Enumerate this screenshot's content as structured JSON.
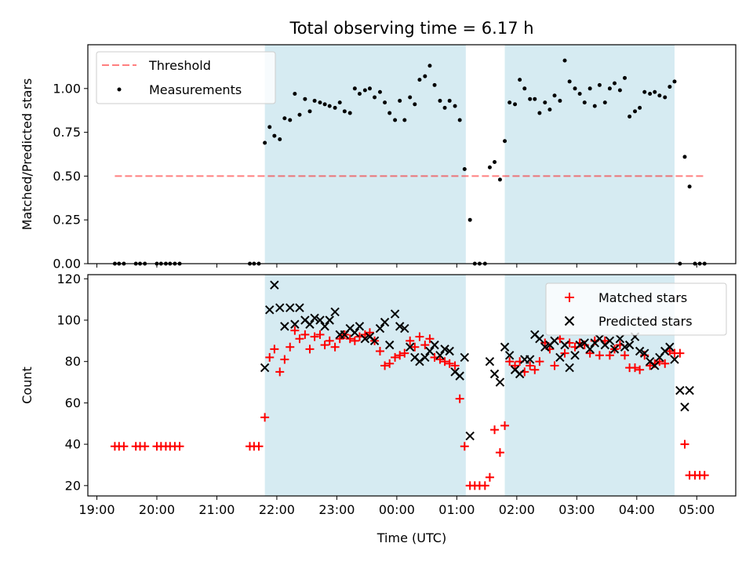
{
  "chart_data": [
    {
      "type": "scatter",
      "panel": "top",
      "title": "Total observing time = 6.17 h",
      "xlabel": "",
      "ylabel": "Matched/Predicted stars",
      "xlim": [
        18.85,
        29.65
      ],
      "ylim": [
        0,
        1.25
      ],
      "yticks": [
        0,
        0.25,
        0.5,
        0.75,
        1.0
      ],
      "ytick_labels": [
        "0.00",
        "0.25",
        "0.50",
        "0.75",
        "1.00"
      ],
      "xticks": [
        19,
        20,
        21,
        22,
        23,
        24,
        25,
        26,
        27,
        28,
        29
      ],
      "show_x_tick_labels": false,
      "grid": false,
      "legend_position": "top-left",
      "observing_windows": [
        [
          21.8,
          25.15
        ],
        [
          25.8,
          28.63
        ]
      ],
      "window_color": "#add8e6",
      "threshold": {
        "name": "Threshold",
        "value": 0.5,
        "x": [
          19.3,
          29.15
        ],
        "color": "#ff0000"
      },
      "series": [
        {
          "name": "Measurements",
          "color": "#000000",
          "x": [
            19.3,
            19.37,
            19.45,
            19.65,
            19.72,
            19.8,
            20.0,
            20.07,
            20.15,
            20.22,
            20.3,
            20.38,
            21.55,
            21.62,
            21.7,
            21.8,
            21.88,
            21.96,
            22.05,
            22.13,
            22.22,
            22.3,
            22.38,
            22.47,
            22.55,
            22.63,
            22.72,
            22.8,
            22.88,
            22.97,
            23.05,
            23.13,
            23.22,
            23.3,
            23.38,
            23.47,
            23.55,
            23.63,
            23.72,
            23.8,
            23.88,
            23.97,
            24.05,
            24.13,
            24.22,
            24.3,
            24.38,
            24.47,
            24.55,
            24.63,
            24.72,
            24.8,
            24.88,
            24.97,
            25.05,
            25.13,
            25.22,
            25.3,
            25.38,
            25.47,
            25.55,
            25.63,
            25.72,
            25.8,
            25.88,
            25.97,
            26.05,
            26.13,
            26.22,
            26.3,
            26.38,
            26.47,
            26.55,
            26.63,
            26.72,
            26.8,
            26.88,
            26.97,
            27.05,
            27.13,
            27.22,
            27.3,
            27.38,
            27.47,
            27.55,
            27.63,
            27.72,
            27.8,
            27.88,
            27.97,
            28.05,
            28.13,
            28.22,
            28.3,
            28.38,
            28.47,
            28.55,
            28.63,
            28.72,
            28.8,
            28.88,
            28.97,
            29.05,
            29.13
          ],
          "y": [
            0,
            0,
            0,
            0,
            0,
            0,
            0,
            0,
            0,
            0,
            0,
            0,
            0,
            0,
            0,
            0.69,
            0.78,
            0.73,
            0.71,
            0.83,
            0.82,
            0.97,
            0.85,
            0.94,
            0.87,
            0.93,
            0.92,
            0.91,
            0.9,
            0.89,
            0.92,
            0.87,
            0.86,
            1.0,
            0.97,
            0.99,
            1.0,
            0.95,
            0.98,
            0.92,
            0.86,
            0.82,
            0.93,
            0.82,
            0.95,
            0.91,
            1.05,
            1.07,
            1.13,
            1.02,
            0.93,
            0.89,
            0.93,
            0.9,
            0.82,
            0.54,
            0.25,
            0,
            0,
            0,
            0.55,
            0.58,
            0.48,
            0.7,
            0.92,
            0.91,
            1.05,
            1.0,
            0.94,
            0.94,
            0.86,
            0.92,
            0.88,
            0.96,
            0.93,
            1.16,
            1.04,
            1.0,
            0.97,
            0.92,
            1.0,
            0.9,
            1.02,
            0.92,
            1.0,
            1.03,
            0.99,
            1.06,
            0.84,
            0.87,
            0.89,
            0.98,
            0.97,
            0.98,
            0.96,
            0.95,
            1.01,
            1.04,
            0,
            0.61,
            0.44,
            0,
            0,
            0
          ]
        }
      ]
    },
    {
      "type": "scatter",
      "panel": "bottom",
      "title": "",
      "xlabel": "Time (UTC)",
      "ylabel": "Count",
      "xlim": [
        18.85,
        29.65
      ],
      "ylim": [
        15,
        122
      ],
      "yticks": [
        20,
        40,
        60,
        80,
        100,
        120
      ],
      "ytick_labels": [
        "20",
        "40",
        "60",
        "80",
        "100",
        "120"
      ],
      "xticks": [
        19,
        20,
        21,
        22,
        23,
        24,
        25,
        26,
        27,
        28,
        29
      ],
      "xtick_labels": [
        "19:00",
        "20:00",
        "21:00",
        "22:00",
        "23:00",
        "00:00",
        "01:00",
        "02:00",
        "03:00",
        "04:00",
        "05:00"
      ],
      "grid": false,
      "legend_position": "top-right",
      "observing_windows": [
        [
          21.8,
          25.15
        ],
        [
          25.8,
          28.63
        ]
      ],
      "window_color": "#add8e6",
      "series": [
        {
          "name": "Matched stars",
          "marker": "plus",
          "color": "#ff0000",
          "x": [
            19.3,
            19.37,
            19.45,
            19.65,
            19.72,
            19.8,
            20.0,
            20.07,
            20.15,
            20.22,
            20.3,
            20.38,
            21.55,
            21.62,
            21.7,
            21.8,
            21.88,
            21.96,
            22.05,
            22.13,
            22.22,
            22.3,
            22.38,
            22.47,
            22.55,
            22.63,
            22.72,
            22.8,
            22.88,
            22.97,
            23.05,
            23.13,
            23.22,
            23.3,
            23.38,
            23.47,
            23.55,
            23.63,
            23.72,
            23.8,
            23.88,
            23.97,
            24.05,
            24.13,
            24.22,
            24.3,
            24.38,
            24.47,
            24.55,
            24.63,
            24.72,
            24.8,
            24.88,
            24.97,
            25.05,
            25.13,
            25.22,
            25.3,
            25.38,
            25.47,
            25.55,
            25.63,
            25.72,
            25.8,
            25.88,
            25.97,
            26.05,
            26.13,
            26.22,
            26.3,
            26.38,
            26.47,
            26.55,
            26.63,
            26.72,
            26.8,
            26.88,
            26.97,
            27.05,
            27.13,
            27.22,
            27.3,
            27.38,
            27.47,
            27.55,
            27.63,
            27.72,
            27.8,
            27.88,
            27.97,
            28.05,
            28.13,
            28.22,
            28.3,
            28.38,
            28.47,
            28.55,
            28.63,
            28.72,
            28.8,
            28.88,
            28.97,
            29.05,
            29.13
          ],
          "y": [
            39,
            39,
            39,
            39,
            39,
            39,
            39,
            39,
            39,
            39,
            39,
            39,
            39,
            39,
            39,
            53,
            82,
            86,
            75,
            81,
            87,
            95,
            91,
            93,
            86,
            92,
            93,
            88,
            90,
            87,
            91,
            93,
            91,
            90,
            92,
            93,
            94,
            90,
            85,
            78,
            79,
            82,
            83,
            84,
            90,
            87,
            92,
            88,
            91,
            82,
            81,
            80,
            79,
            78,
            62,
            39,
            20,
            20,
            20,
            20,
            24,
            47,
            36,
            49,
            80,
            78,
            80,
            75,
            78,
            76,
            80,
            89,
            86,
            78,
            91,
            84,
            89,
            87,
            89,
            88,
            84,
            90,
            83,
            90,
            83,
            86,
            88,
            83,
            77,
            77,
            76,
            83,
            78,
            79,
            80,
            79,
            85,
            84,
            84,
            40,
            25,
            25,
            25,
            25
          ]
        },
        {
          "name": "Predicted stars",
          "marker": "x",
          "color": "#000000",
          "x": [
            21.8,
            21.88,
            21.96,
            22.05,
            22.13,
            22.22,
            22.3,
            22.38,
            22.47,
            22.55,
            22.63,
            22.72,
            22.8,
            22.88,
            22.97,
            23.05,
            23.13,
            23.22,
            23.3,
            23.38,
            23.47,
            23.55,
            23.63,
            23.72,
            23.8,
            23.88,
            23.97,
            24.05,
            24.13,
            24.22,
            24.3,
            24.38,
            24.47,
            24.55,
            24.63,
            24.72,
            24.8,
            24.88,
            24.97,
            25.05,
            25.13,
            25.22,
            25.55,
            25.63,
            25.72,
            25.8,
            25.88,
            25.97,
            26.05,
            26.13,
            26.22,
            26.3,
            26.38,
            26.47,
            26.55,
            26.63,
            26.72,
            26.8,
            26.88,
            26.97,
            27.05,
            27.13,
            27.22,
            27.3,
            27.38,
            27.47,
            27.55,
            27.63,
            27.72,
            27.8,
            27.88,
            27.97,
            28.05,
            28.13,
            28.22,
            28.3,
            28.38,
            28.47,
            28.55,
            28.63,
            28.72,
            28.8,
            28.88
          ],
          "y": [
            77,
            105,
            117,
            106,
            97,
            106,
            98,
            106,
            100,
            98,
            101,
            100,
            97,
            100,
            104,
            93,
            93,
            96,
            94,
            97,
            91,
            92,
            90,
            96,
            99,
            88,
            103,
            97,
            96,
            87,
            82,
            80,
            82,
            85,
            88,
            83,
            86,
            85,
            75,
            73,
            82,
            44,
            80,
            74,
            70,
            87,
            83,
            76,
            74,
            81,
            81,
            93,
            91,
            87,
            88,
            90,
            82,
            88,
            77,
            83,
            88,
            89,
            86,
            89,
            91,
            88,
            90,
            86,
            91,
            87,
            88,
            92,
            85,
            84,
            80,
            78,
            82,
            85,
            87,
            81,
            66,
            58,
            66
          ]
        }
      ]
    }
  ]
}
